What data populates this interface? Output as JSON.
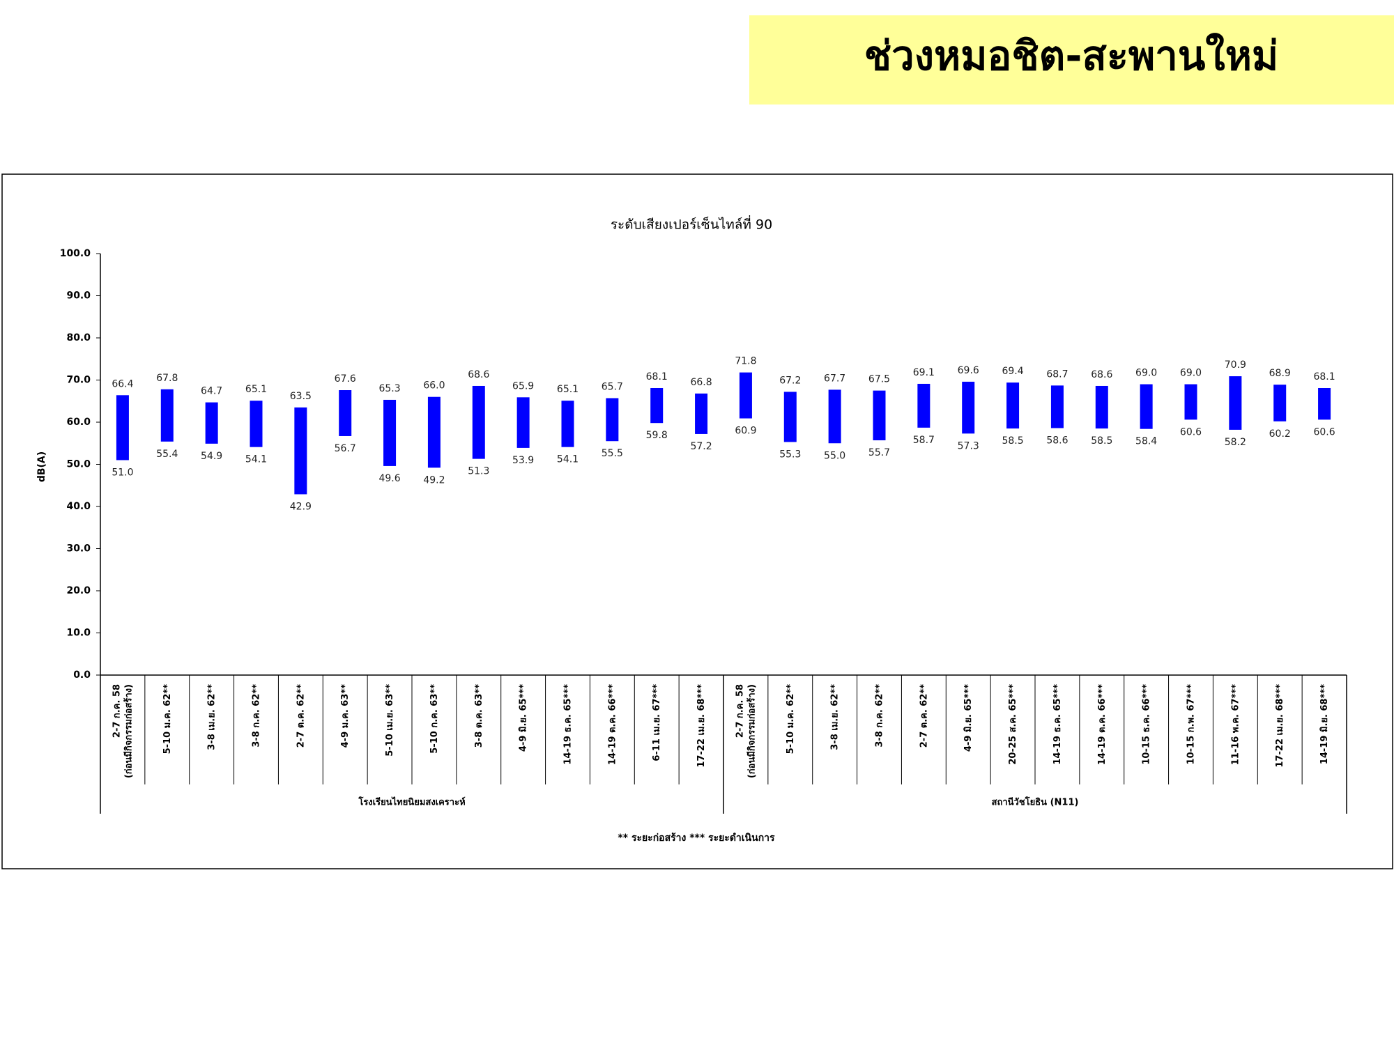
{
  "heading": "ช่วงหมอชิต-สะพานใหม่",
  "chart_data": {
    "type": "floating_bar",
    "title": "ระดับเสียงเปอร์เซ็นไทล์ที่ 90",
    "ylabel": "dB(A)",
    "footnote": "** ระยะก่อสร้าง    *** ระยะดำเนินการ",
    "color": "#0000ff",
    "ylim": [
      0,
      100
    ],
    "yticks": [
      {
        "value": 0,
        "label": "0.0"
      },
      {
        "value": 10,
        "label": "10.0"
      },
      {
        "value": 20,
        "label": "20.0"
      },
      {
        "value": 30,
        "label": "30.0"
      },
      {
        "value": 40,
        "label": "40.0"
      },
      {
        "value": 50,
        "label": "50.0"
      },
      {
        "value": 60,
        "label": "60.0"
      },
      {
        "value": 70,
        "label": "70.0"
      },
      {
        "value": 80,
        "label": "80.0"
      },
      {
        "value": 90,
        "label": "90.0"
      },
      {
        "value": 100,
        "label": "100.0"
      }
    ],
    "groups": [
      {
        "label": "โรงเรียนไทยนิยมสงเคราะห์",
        "categories": [
          "2-7 ก.ค. 58\n(ก่อนมีกิจกรรมก่อสร้าง)",
          "5-10 ม.ค. 62**",
          "3-8 เม.ย. 62**",
          "3-8 ก.ค. 62**",
          "2-7 ต.ค. 62**",
          "4-9 ม.ค. 63**",
          "5-10 เม.ย. 63**",
          "5-10 ก.ค. 63**",
          "3-8 ต.ค. 63**",
          "4-9 มิ.ย. 65***",
          "14-19 ธ.ค. 65***",
          "14-19 ต.ค. 66***",
          "6-11 เม.ย. 67***",
          "17-22 เม.ย. 68***"
        ],
        "high": {
          "values": [
            66.4,
            67.8,
            64.7,
            65.1,
            63.5,
            67.6,
            65.3,
            66,
            68.6,
            65.9,
            65.1,
            65.7,
            68.1,
            66.8
          ],
          "value_labels": [
            "66.4",
            "67.8",
            "64.7",
            "65.1",
            "63.5",
            "67.6",
            "65.3",
            "66.0",
            "68.6",
            "65.9",
            "65.1",
            "65.7",
            "68.1",
            "66.8"
          ]
        },
        "low": {
          "values": [
            51,
            55.4,
            54.9,
            54.1,
            42.9,
            56.7,
            49.6,
            49.2,
            51.3,
            53.9,
            54.1,
            55.5,
            59.8,
            57.2
          ],
          "value_labels": [
            "51.0",
            "55.4",
            "54.9",
            "54.1",
            "42.9",
            "56.7",
            "49.6",
            "49.2",
            "51.3",
            "53.9",
            "54.1",
            "55.5",
            "59.8",
            "57.2"
          ]
        }
      },
      {
        "label": "สถานีวัชโยธิน (N11)",
        "categories": [
          "2-7 ก.ค. 58\n(ก่อนมีกิจกรรมก่อสร้าง)",
          "5-10 ม.ค. 62**",
          "3-8 เม.ย. 62**",
          "3-8 ก.ค. 62**",
          "2-7 ต.ค. 62**",
          "4-9 มิ.ย. 65***",
          "20-25 ส.ค. 65***",
          "14-19 ธ.ค. 65***",
          "14-19 ต.ค. 66***",
          "10-15 ธ.ค. 66***",
          "10-15 ก.พ. 67***",
          "11-16 พ.ค. 67***",
          "17-22 เม.ย. 68***",
          "14-19 มิ.ย. 68***"
        ],
        "high": {
          "values": [
            71.8,
            67.2,
            67.7,
            67.5,
            69.1,
            69.6,
            69.4,
            68.7,
            68.6,
            69,
            69,
            70.9,
            68.9,
            68.1
          ],
          "value_labels": [
            "71.8",
            "67.2",
            "67.7",
            "67.5",
            "69.1",
            "69.6",
            "69.4",
            "68.7",
            "68.6",
            "69.0",
            "69.0",
            "70.9",
            "68.9",
            "68.1"
          ]
        },
        "low": {
          "values": [
            60.9,
            55.3,
            55,
            55.7,
            58.7,
            57.3,
            58.5,
            58.6,
            58.5,
            58.4,
            60.6,
            58.2,
            60.2,
            60.6
          ],
          "value_labels": [
            "60.9",
            "55.3",
            "55.0",
            "55.7",
            "58.7",
            "57.3",
            "58.5",
            "58.6",
            "58.5",
            "58.4",
            "60.6",
            "58.2",
            "60.2",
            "60.6"
          ]
        }
      }
    ]
  }
}
